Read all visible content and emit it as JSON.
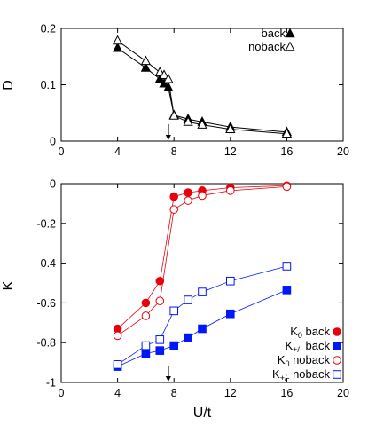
{
  "chart_data": [
    {
      "type": "line",
      "ylabel": "D",
      "xlabel": "",
      "xlim": [
        0,
        20
      ],
      "ylim": [
        0,
        0.2
      ],
      "xticks": [
        "0",
        "4",
        "8",
        "12",
        "16",
        "20"
      ],
      "yticks": [
        "0",
        "0.1",
        "0.2"
      ],
      "grid": false,
      "legend_position": "top-right",
      "arrow_at_x": 7.6,
      "series": [
        {
          "name": "back",
          "marker": "triangle-filled",
          "color": "#000000",
          "x": [
            4,
            6,
            7,
            7.3,
            7.6,
            8,
            9,
            10,
            12,
            16
          ],
          "y": [
            0.165,
            0.13,
            0.11,
            0.102,
            0.095,
            0.046,
            0.039,
            0.034,
            0.025,
            0.016
          ]
        },
        {
          "name": "noback",
          "marker": "triangle-open",
          "color": "#000000",
          "x": [
            4,
            6,
            7,
            7.3,
            7.6,
            8,
            9,
            10,
            12,
            16
          ],
          "y": [
            0.178,
            0.142,
            0.122,
            0.117,
            0.11,
            0.045,
            0.034,
            0.029,
            0.021,
            0.013
          ]
        }
      ]
    },
    {
      "type": "line",
      "ylabel": "K",
      "xlabel": "U/t",
      "xlim": [
        0,
        20
      ],
      "ylim": [
        -1,
        0
      ],
      "xticks": [
        "0",
        "4",
        "8",
        "12",
        "16",
        "20"
      ],
      "yticks": [
        "-1",
        "-0.8",
        "-0.6",
        "-0.4",
        "-0.2",
        "0"
      ],
      "grid": false,
      "legend_position": "bottom-right",
      "arrow_at_x": 7.6,
      "series": [
        {
          "name": "K0 back",
          "label_main": "K",
          "label_sub": "0",
          "label_rest": " back",
          "marker": "circle-filled",
          "color": "#e8000b",
          "x": [
            4,
            6,
            7,
            8,
            9,
            10,
            12,
            16
          ],
          "y": [
            -0.73,
            -0.6,
            -0.49,
            -0.065,
            -0.045,
            -0.035,
            -0.02,
            -0.01
          ]
        },
        {
          "name": "K+/- back",
          "label_main": "K",
          "label_sub": "+/-",
          "label_rest": " back",
          "marker": "square-filled",
          "color": "#0018f9",
          "x": [
            4,
            6,
            7,
            8,
            9,
            10,
            12,
            16
          ],
          "y": [
            -0.92,
            -0.855,
            -0.84,
            -0.815,
            -0.775,
            -0.73,
            -0.655,
            -0.535
          ]
        },
        {
          "name": "K0 noback",
          "label_main": "K",
          "label_sub": "0",
          "label_rest": " noback",
          "marker": "circle-open",
          "color": "#e8000b",
          "x": [
            4,
            6,
            7,
            8,
            9,
            10,
            12,
            16
          ],
          "y": [
            -0.765,
            -0.665,
            -0.59,
            -0.13,
            -0.085,
            -0.06,
            -0.035,
            -0.015
          ]
        },
        {
          "name": "K+/- noback",
          "label_main": "K",
          "label_sub": "+/-",
          "label_rest": " noback",
          "marker": "square-open",
          "color": "#0018f9",
          "x": [
            4,
            6,
            7,
            8,
            9,
            10,
            12,
            16
          ],
          "y": [
            -0.91,
            -0.815,
            -0.785,
            -0.64,
            -0.585,
            -0.545,
            -0.49,
            -0.415
          ]
        }
      ]
    }
  ]
}
